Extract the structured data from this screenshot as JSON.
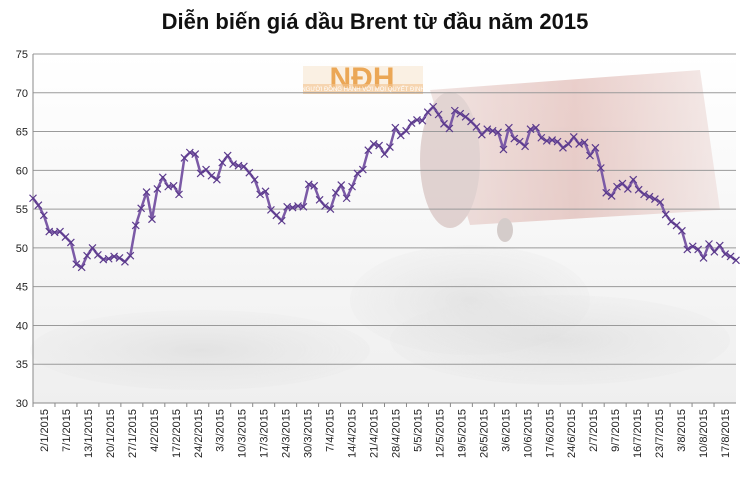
{
  "logo": {
    "text": "NĐH",
    "tagline": "NGƯỜI ĐỒNG HÀNH VỚI MỌI QUYẾT ĐỊNH"
  },
  "chart_data": {
    "type": "line",
    "title": "Diễn biến giá dầu Brent từ đầu năm 2015",
    "xlabel": "",
    "ylabel": "",
    "ylim": [
      30,
      75
    ],
    "yticks": [
      30,
      35,
      40,
      45,
      50,
      55,
      60,
      65,
      70,
      75
    ],
    "grid": true,
    "legend": "none",
    "colors": {
      "line": "#7b5aa6",
      "marker": "#5b3a8c",
      "grid": "#9a9a9a"
    },
    "x_tick_labels": [
      "2/1/2015",
      "7/1/2015",
      "13/1/2015",
      "20/1/2015",
      "27/1/2015",
      "4/2/2015",
      "17/2/2015",
      "24/2/2015",
      "3/3/2015",
      "10/3/2015",
      "17/3/2015",
      "24/3/2015",
      "30/3/2015",
      "7/4/2015",
      "14/4/2015",
      "21/4/2015",
      "28/4/2015",
      "5/5/2015",
      "12/5/2015",
      "19/5/2015",
      "26/5/2015",
      "3/6/2015",
      "10/6/2015",
      "17/6/2015",
      "24/6/2015",
      "2/7/2015",
      "9/7/2015",
      "16/7/2015",
      "23/7/2015",
      "3/8/2015",
      "10/8/2015",
      "17/8/2015"
    ],
    "series": [
      {
        "values": [
          56.4,
          55.5,
          54.2,
          52.1,
          52.0,
          52.1,
          51.4,
          50.7,
          47.9,
          47.5,
          49.0,
          50.0,
          49.1,
          48.5,
          48.6,
          48.9,
          48.7,
          48.2,
          49.0,
          52.9,
          55.1,
          57.2,
          53.7,
          57.6,
          59.1,
          57.9,
          58.0,
          56.9,
          61.6,
          62.3,
          62.1,
          59.6,
          60.1,
          59.3,
          58.8,
          61.0,
          61.9,
          60.8,
          60.6,
          60.5,
          59.7,
          58.8,
          56.9,
          57.3,
          54.9,
          54.2,
          53.5,
          55.3,
          55.2,
          55.4,
          55.3,
          58.2,
          58.0,
          56.2,
          55.4,
          55.0,
          57.1,
          58.1,
          56.4,
          57.9,
          59.6,
          60.1,
          62.6,
          63.4,
          63.2,
          62.1,
          63.0,
          65.5,
          64.5,
          65.1,
          66.1,
          66.5,
          66.4,
          67.5,
          68.2,
          67.2,
          66.0,
          65.4,
          67.7,
          67.3,
          66.9,
          66.3,
          65.6,
          64.6,
          65.3,
          65.1,
          64.9,
          62.7,
          65.5,
          64.1,
          63.7,
          63.1,
          65.3,
          65.5,
          64.2,
          63.8,
          63.9,
          63.7,
          62.9,
          63.4,
          64.3,
          63.4,
          63.6,
          61.9,
          62.9,
          60.3,
          57.1,
          56.7,
          57.9,
          58.3,
          57.6,
          58.8,
          57.5,
          56.9,
          56.6,
          56.3,
          55.9,
          54.3,
          53.4,
          52.9,
          52.2,
          49.8,
          50.2,
          49.8,
          48.7,
          50.5,
          49.5,
          50.3,
          49.2,
          48.9,
          48.4
        ]
      }
    ]
  }
}
